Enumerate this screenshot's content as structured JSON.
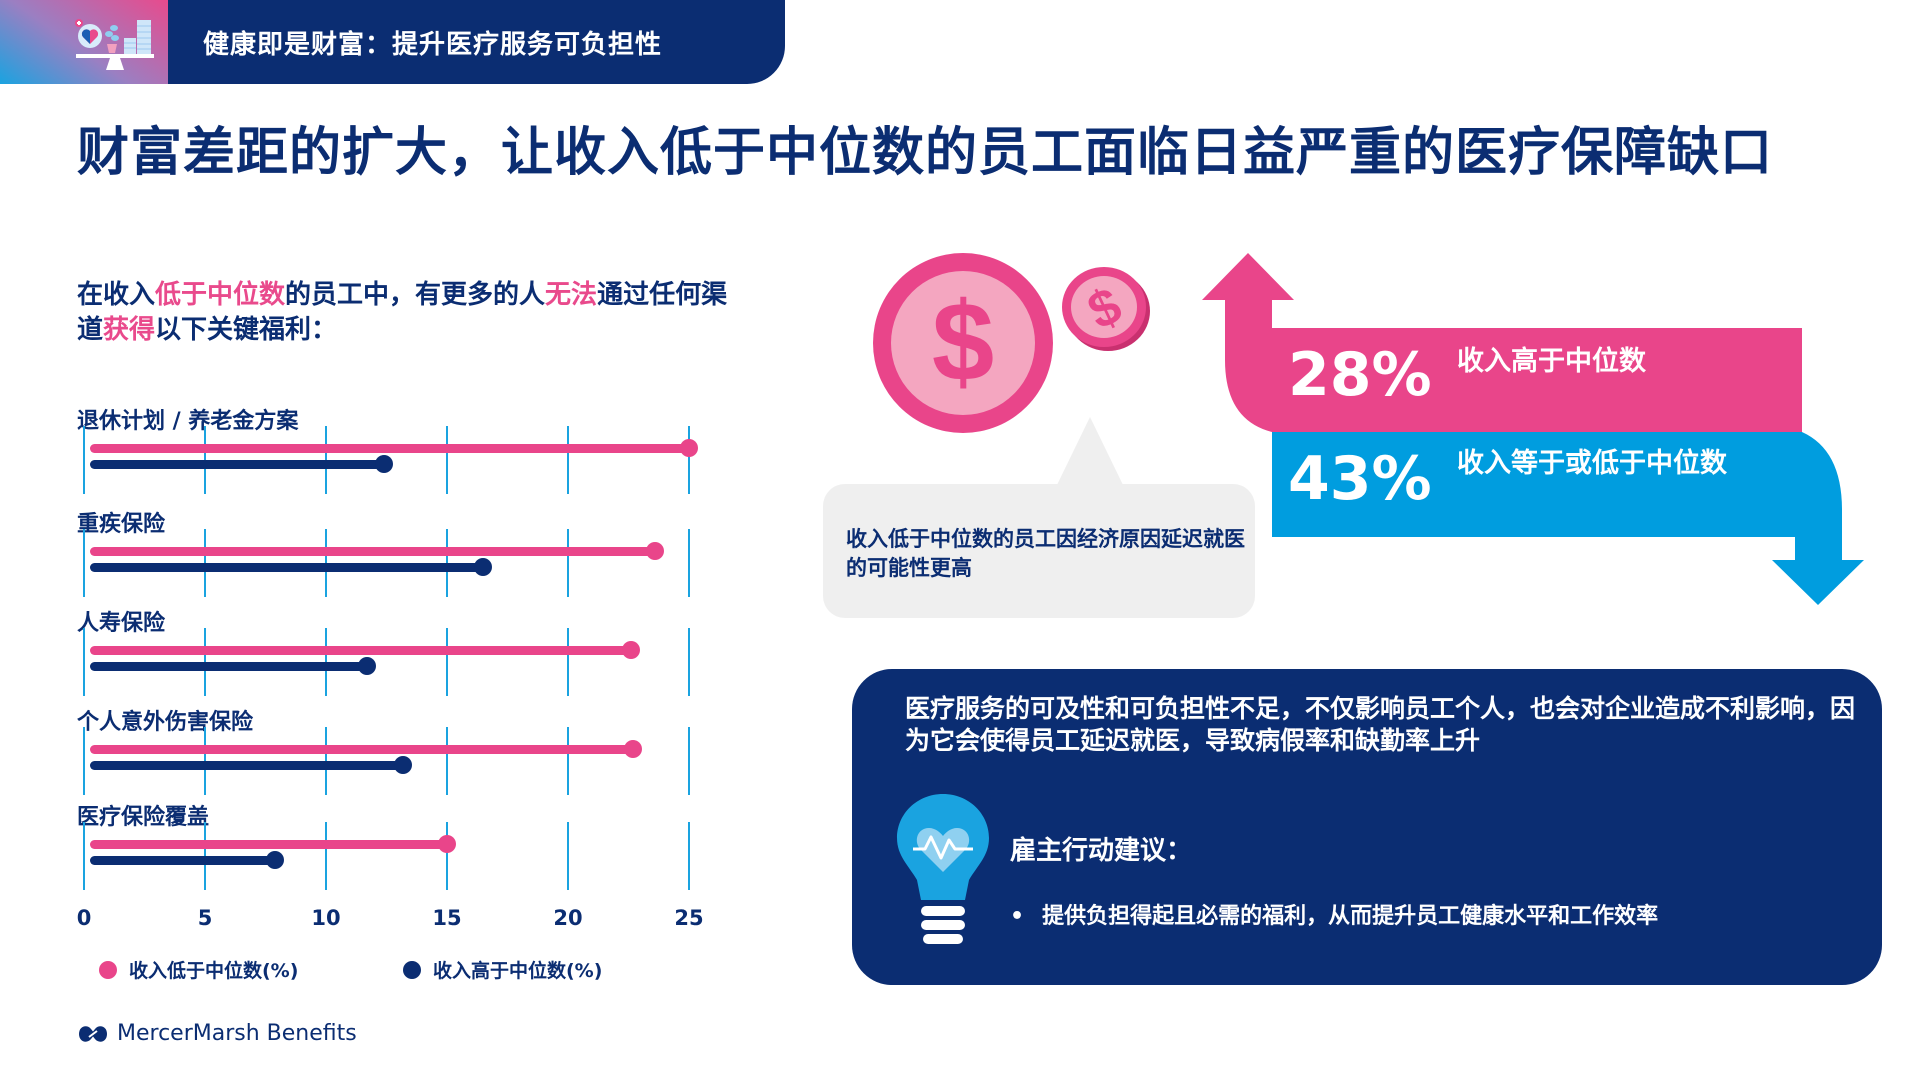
{
  "header": {
    "title": "健康即是财富：提升医疗服务可负担性",
    "icon": "scale-heart-coins-icon"
  },
  "main_title": "财富差距的扩大，让收入低于中位数的员工面临日益严重的医疗保障缺口",
  "intro": {
    "segments": [
      {
        "text": "在收入",
        "highlight": false
      },
      {
        "text": "低于中位数",
        "highlight": true
      },
      {
        "text": "的员工中，有更多的人",
        "highlight": false
      },
      {
        "text": "无法",
        "highlight": true
      },
      {
        "text": "通过任何渠道",
        "highlight": false
      },
      {
        "text": "获得",
        "highlight": true
      },
      {
        "text": "以下关键福利：",
        "highlight": false
      }
    ]
  },
  "colors": {
    "pink": "#e9458a",
    "navy": "#0b2d72",
    "cyan": "#1aa3e0",
    "light_pink": "#f4a6c0",
    "bubble_gray": "#efefef"
  },
  "chart_data": {
    "type": "bar",
    "orientation": "horizontal",
    "title": "在收入低于中位数的员工中，有更多的人无法通过任何渠道获得以下关键福利：",
    "categories": [
      "退休计划 / 养老金方案",
      "重疾保险",
      "人寿保险",
      "个人意外伤害保险",
      "医疗保险覆盖"
    ],
    "series": [
      {
        "name": "收入低于中位数(%)",
        "color": "#e9458a",
        "values": [
          25.0,
          23.6,
          22.6,
          22.7,
          15.0
        ]
      },
      {
        "name": "收入高于中位数(%)",
        "color": "#0b2d72",
        "values": [
          12.4,
          16.5,
          11.7,
          13.2,
          7.9
        ]
      }
    ],
    "xticks": [
      "0",
      "5",
      "10",
      "15",
      "20",
      "25"
    ],
    "xlim": [
      0,
      25
    ],
    "xlabel": "",
    "ylabel": "",
    "grid": true,
    "legend_position": "bottom"
  },
  "legend": [
    {
      "label": "收入低于中位数(%)",
      "color": "#e9458a"
    },
    {
      "label": "收入高于中位数(%)",
      "color": "#0b2d72"
    }
  ],
  "logo": {
    "text": "MercerMarsh Benefits",
    "icon": "mmb-logo-icon"
  },
  "bubble": {
    "text": "收入低于中位数的员工因经济原因延迟就医的可能性更高",
    "icons": [
      "dollar-coin-large-icon",
      "dollar-coin-small-icon"
    ]
  },
  "stats": [
    {
      "value": "28%",
      "label": "收入高于中位数",
      "color": "#e9458a",
      "direction": "up"
    },
    {
      "value": "43%",
      "label": "收入等于或低于中位数",
      "color": "#009ddf",
      "direction": "down"
    }
  ],
  "action": {
    "paragraph": "医疗服务的可及性和可负担性不足，不仅影响员工个人，也会对企业造成不利影响，因为它会使得员工延迟就医，导致病假率和缺勤率上升",
    "title": "雇主行动建议：",
    "bullets": [
      "提供负担得起且必需的福利，从而提升员工健康水平和工作效率"
    ],
    "bullet_char": "•",
    "icon": "lightbulb-heart-icon"
  }
}
